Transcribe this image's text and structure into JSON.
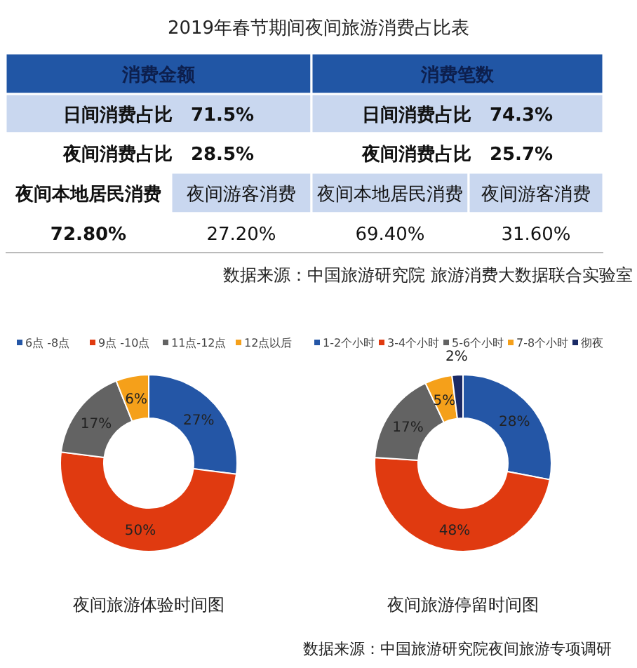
{
  "chart_data": [
    {
      "type": "other",
      "title": "2019年春节期间夜间旅游消费占比表",
      "annotations": [
        "消费金额",
        "消费笔数",
        "日间消费占比　71.5%",
        "日间消费占比　74.3%",
        "夜间消费占比　28.5%",
        "夜间消费占比　25.7%",
        "夜间本地居民消费",
        "夜间游客消费",
        "夜间本地居民消费",
        "夜间游客消费",
        "72.80%",
        "27.20%",
        "69.40%",
        "31.60%",
        "数据来源：中国旅游研究院 旅游消费大数据联合实验室"
      ]
    },
    {
      "type": "donut",
      "title": "夜间旅游体验时间图",
      "categories": [
        "6点 -8点",
        "9点 -10点",
        "11点-12点",
        "12点以后"
      ],
      "values": [
        27,
        50,
        17,
        6
      ],
      "colors": [
        "#2456a6",
        "#e03a10",
        "#636363",
        "#f5a01a"
      ],
      "value_labels": [
        "27%",
        "50%",
        "17%",
        "6%"
      ],
      "legend": "top"
    },
    {
      "type": "donut",
      "title": "夜间旅游停留时间图",
      "categories": [
        "1-2个小时",
        "3-4个小时",
        "5-6个小时",
        "7-8个小时",
        "彻夜"
      ],
      "values": [
        28,
        48,
        17,
        5,
        2
      ],
      "colors": [
        "#2456a6",
        "#e03a10",
        "#636363",
        "#f5a01a",
        "#1a2a66"
      ],
      "value_labels": [
        "28%",
        "48%",
        "17%",
        "5%",
        "2%"
      ],
      "legend": "top",
      "annotations": [
        "数据来源：中国旅游研究院夜间旅游专项调研"
      ]
    }
  ]
}
